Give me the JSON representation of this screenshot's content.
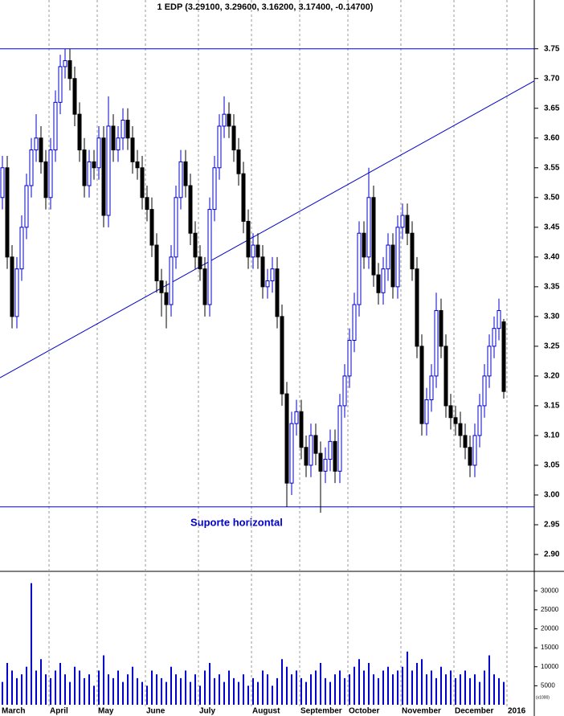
{
  "chart_data": {
    "type": "candlestick",
    "title": "1 EDP (3.29100, 3.29600, 3.16200, 3.17400, -0.14700)",
    "annotation": "Suporte horizontal",
    "categories": [
      "March",
      null,
      null,
      null,
      null,
      null,
      null,
      null,
      null,
      null,
      "April",
      null,
      null,
      null,
      null,
      null,
      null,
      null,
      null,
      null,
      "May",
      null,
      null,
      null,
      null,
      null,
      null,
      null,
      null,
      null,
      "June",
      null,
      null,
      null,
      null,
      null,
      null,
      null,
      null,
      null,
      null,
      "July",
      null,
      null,
      null,
      null,
      null,
      null,
      null,
      null,
      null,
      null,
      "August",
      null,
      null,
      null,
      null,
      null,
      null,
      null,
      null,
      null,
      "September",
      null,
      null,
      null,
      null,
      null,
      null,
      null,
      null,
      null,
      "October",
      null,
      null,
      null,
      null,
      null,
      null,
      null,
      null,
      null,
      null,
      "November",
      null,
      null,
      null,
      null,
      null,
      null,
      null,
      null,
      null,
      null,
      "December",
      null,
      null,
      null,
      null,
      null,
      null,
      null,
      null,
      null,
      null,
      "2016"
    ],
    "open": [
      3.5,
      3.55,
      3.4,
      3.3,
      3.38,
      3.45,
      3.52,
      3.58,
      3.6,
      3.56,
      3.5,
      3.58,
      3.66,
      3.72,
      3.73,
      3.7,
      3.64,
      3.58,
      3.52,
      3.56,
      3.55,
      3.6,
      3.47,
      3.62,
      3.58,
      3.6,
      3.63,
      3.6,
      3.56,
      3.55,
      3.5,
      3.48,
      3.42,
      3.36,
      3.34,
      3.32,
      3.4,
      3.5,
      3.56,
      3.52,
      3.44,
      3.4,
      3.38,
      3.32,
      3.48,
      3.55,
      3.62,
      3.64,
      3.62,
      3.58,
      3.54,
      3.46,
      3.4,
      3.42,
      3.4,
      3.35,
      3.36,
      3.38,
      3.3,
      3.17,
      3.02,
      3.12,
      3.14,
      3.08,
      3.05,
      3.1,
      3.07,
      3.04,
      3.06,
      3.09,
      3.04,
      3.15,
      3.2,
      3.26,
      3.32,
      3.44,
      3.4,
      3.5,
      3.37,
      3.34,
      3.38,
      3.42,
      3.35,
      3.45,
      3.47,
      3.44,
      3.38,
      3.25,
      3.12,
      3.16,
      3.2,
      3.31,
      3.25,
      3.15,
      3.13,
      3.12,
      3.1,
      3.08,
      3.05,
      3.1,
      3.15,
      3.2,
      3.25,
      3.28,
      3.291,
      null
    ],
    "high": [
      3.57,
      3.57,
      3.42,
      3.4,
      3.47,
      3.54,
      3.6,
      3.64,
      3.62,
      3.58,
      3.6,
      3.68,
      3.74,
      3.75,
      3.75,
      3.72,
      3.66,
      3.6,
      3.58,
      3.58,
      3.62,
      3.62,
      3.67,
      3.64,
      3.62,
      3.65,
      3.65,
      3.62,
      3.58,
      3.57,
      3.52,
      3.5,
      3.44,
      3.38,
      3.36,
      3.42,
      3.52,
      3.58,
      3.58,
      3.54,
      3.46,
      3.42,
      3.4,
      3.5,
      3.57,
      3.64,
      3.67,
      3.66,
      3.64,
      3.6,
      3.56,
      3.48,
      3.44,
      3.44,
      3.42,
      3.38,
      3.4,
      3.4,
      3.32,
      3.19,
      3.14,
      3.16,
      3.16,
      3.1,
      3.12,
      3.12,
      3.09,
      3.08,
      3.11,
      3.11,
      3.17,
      3.22,
      3.28,
      3.34,
      3.46,
      3.46,
      3.55,
      3.52,
      3.39,
      3.4,
      3.44,
      3.44,
      3.47,
      3.49,
      3.49,
      3.46,
      3.4,
      3.27,
      3.18,
      3.22,
      3.34,
      3.33,
      3.27,
      3.17,
      3.15,
      3.14,
      3.12,
      3.1,
      3.12,
      3.17,
      3.22,
      3.27,
      3.3,
      3.33,
      3.296,
      null
    ],
    "low": [
      3.48,
      3.38,
      3.28,
      3.28,
      3.36,
      3.43,
      3.5,
      3.56,
      3.54,
      3.48,
      3.48,
      3.56,
      3.64,
      3.7,
      3.68,
      3.62,
      3.56,
      3.5,
      3.5,
      3.53,
      3.53,
      3.45,
      3.45,
      3.56,
      3.56,
      3.58,
      3.58,
      3.54,
      3.53,
      3.48,
      3.46,
      3.4,
      3.34,
      3.3,
      3.28,
      3.3,
      3.38,
      3.48,
      3.5,
      3.42,
      3.38,
      3.36,
      3.3,
      3.3,
      3.46,
      3.53,
      3.6,
      3.6,
      3.56,
      3.52,
      3.44,
      3.38,
      3.38,
      3.38,
      3.33,
      3.33,
      3.34,
      3.28,
      3.15,
      2.98,
      3.0,
      3.1,
      3.06,
      3.03,
      3.03,
      3.05,
      2.97,
      3.02,
      3.04,
      3.02,
      3.02,
      3.13,
      3.18,
      3.24,
      3.3,
      3.38,
      3.38,
      3.35,
      3.32,
      3.32,
      3.36,
      3.33,
      3.33,
      3.43,
      3.42,
      3.36,
      3.23,
      3.1,
      3.1,
      3.14,
      3.18,
      3.23,
      3.13,
      3.11,
      3.1,
      3.08,
      3.06,
      3.03,
      3.03,
      3.08,
      3.13,
      3.18,
      3.23,
      3.26,
      3.162,
      null
    ],
    "close": [
      3.55,
      3.4,
      3.3,
      3.38,
      3.45,
      3.52,
      3.58,
      3.6,
      3.56,
      3.5,
      3.58,
      3.66,
      3.72,
      3.73,
      3.7,
      3.64,
      3.58,
      3.52,
      3.56,
      3.55,
      3.6,
      3.47,
      3.62,
      3.58,
      3.6,
      3.63,
      3.6,
      3.56,
      3.55,
      3.5,
      3.48,
      3.42,
      3.36,
      3.34,
      3.32,
      3.4,
      3.5,
      3.56,
      3.52,
      3.44,
      3.4,
      3.38,
      3.32,
      3.48,
      3.55,
      3.62,
      3.64,
      3.62,
      3.58,
      3.54,
      3.46,
      3.4,
      3.42,
      3.4,
      3.35,
      3.36,
      3.38,
      3.3,
      3.17,
      3.02,
      3.12,
      3.14,
      3.08,
      3.05,
      3.1,
      3.07,
      3.04,
      3.06,
      3.09,
      3.04,
      3.15,
      3.2,
      3.26,
      3.32,
      3.44,
      3.4,
      3.5,
      3.37,
      3.34,
      3.38,
      3.42,
      3.35,
      3.45,
      3.47,
      3.44,
      3.38,
      3.25,
      3.12,
      3.16,
      3.2,
      3.31,
      3.25,
      3.15,
      3.13,
      3.12,
      3.1,
      3.08,
      3.05,
      3.1,
      3.15,
      3.2,
      3.25,
      3.28,
      3.31,
      3.174,
      null
    ],
    "volume": [
      6000,
      11000,
      9000,
      7000,
      8000,
      10000,
      32000,
      9000,
      12000,
      8000,
      7000,
      9000,
      11000,
      8000,
      6000,
      10000,
      9000,
      7000,
      8000,
      5000,
      9000,
      13000,
      8000,
      7000,
      9000,
      6000,
      8000,
      10000,
      7000,
      6000,
      5000,
      9000,
      8000,
      7000,
      6000,
      10000,
      8000,
      7000,
      9000,
      6000,
      8000,
      5000,
      9000,
      11000,
      7000,
      8000,
      6000,
      9000,
      7000,
      6000,
      8000,
      5000,
      7000,
      6000,
      9000,
      8000,
      5000,
      7000,
      12000,
      10000,
      8000,
      9000,
      7000,
      6000,
      8000,
      9000,
      11000,
      7000,
      6000,
      8000,
      9000,
      7000,
      8000,
      10000,
      12000,
      9000,
      11000,
      8000,
      7000,
      9000,
      10000,
      8000,
      9000,
      10000,
      14000,
      9000,
      11000,
      12000,
      8000,
      9000,
      7000,
      10000,
      8000,
      9000,
      7000,
      8000,
      9000,
      7000,
      8000,
      6000,
      9000,
      13000,
      8000,
      7000,
      6000,
      null
    ],
    "ylim": [
      2.873,
      3.832
    ],
    "yticks": [
      {
        "value": 2.9,
        "label": "2.90"
      },
      {
        "value": 2.95,
        "label": "2.95"
      },
      {
        "value": 3.0,
        "label": "3.00"
      },
      {
        "value": 3.05,
        "label": "3.05"
      },
      {
        "value": 3.1,
        "label": "3.10"
      },
      {
        "value": 3.15,
        "label": "3.15"
      },
      {
        "value": 3.2,
        "label": "3.20"
      },
      {
        "value": 3.25,
        "label": "3.25"
      },
      {
        "value": 3.3,
        "label": "3.30"
      },
      {
        "value": 3.35,
        "label": "3.35"
      },
      {
        "value": 3.4,
        "label": "3.40"
      },
      {
        "value": 3.45,
        "label": "3.45"
      },
      {
        "value": 3.5,
        "label": "3.50"
      },
      {
        "value": 3.55,
        "label": "3.55"
      },
      {
        "value": 3.6,
        "label": "3.60"
      },
      {
        "value": 3.65,
        "label": "3.65"
      },
      {
        "value": 3.7,
        "label": "3.70"
      },
      {
        "value": 3.75,
        "label": "3.75"
      }
    ],
    "volume_ylim": [
      0,
      34900
    ],
    "volume_yticks": [
      5000,
      10000,
      15000,
      20000,
      25000,
      30000
    ],
    "volume_unit": "(x1000)",
    "horizontal_lines": [
      3.75,
      2.98
    ],
    "trendline": [
      3.197,
      3.696
    ],
    "up_color": "#0000cc",
    "down_color": "#000000",
    "line_color": "#0000cc",
    "volume_color": "#0000cc"
  }
}
